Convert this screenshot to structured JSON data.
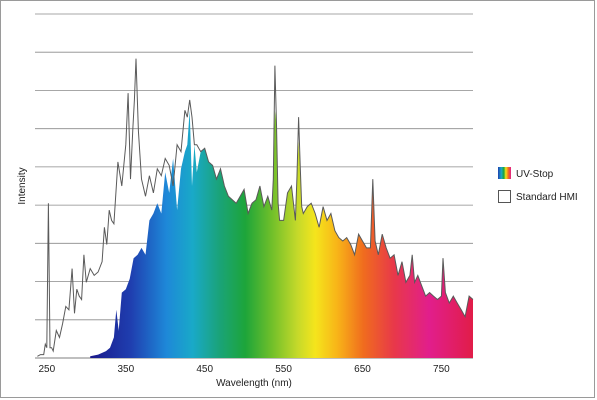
{
  "chart_data": {
    "type": "area",
    "xlabel": "Wavelength (nm)",
    "ylabel": "Intensity",
    "xlim": [
      235,
      790
    ],
    "ylim": [
      0,
      100
    ],
    "x_ticks": [
      250,
      350,
      450,
      550,
      650,
      750
    ],
    "grid": "horizontal, 9 lines",
    "legend_position": "right",
    "series": [
      {
        "name": "UV-Stop",
        "style": "rainbow-filled area",
        "x": [
          305,
          315,
          325,
          330,
          335,
          338,
          341,
          345,
          350,
          355,
          360,
          365,
          370,
          375,
          380,
          385,
          390,
          395,
          400,
          405,
          410,
          415,
          420,
          425,
          428,
          431,
          434,
          437,
          440,
          445,
          450,
          455,
          460,
          465,
          470,
          475,
          480,
          485,
          490,
          495,
          500,
          505,
          510,
          515,
          520,
          525,
          530,
          535,
          537,
          539,
          541,
          543,
          545,
          550,
          555,
          560,
          565,
          567,
          569,
          571,
          573,
          575,
          580,
          585,
          590,
          595,
          600,
          605,
          610,
          615,
          620,
          625,
          630,
          635,
          640,
          645,
          650,
          655,
          660,
          663,
          666,
          670,
          675,
          680,
          685,
          690,
          695,
          700,
          705,
          710,
          713,
          716,
          720,
          725,
          730,
          735,
          740,
          745,
          750,
          752,
          755,
          760,
          765,
          770,
          775,
          780,
          785,
          790
        ],
        "y": [
          0.5,
          1,
          2,
          3,
          6,
          14,
          8,
          19,
          20,
          23,
          29,
          30,
          32,
          30,
          40,
          42,
          45,
          42,
          54,
          48,
          58,
          43,
          55,
          60,
          62,
          72,
          50,
          62,
          54,
          60,
          61,
          57,
          56,
          52,
          55,
          50,
          47,
          46,
          45,
          47,
          49,
          42,
          45,
          46,
          50,
          44,
          47,
          43,
          52,
          72,
          68,
          45,
          40,
          40,
          48,
          50,
          40,
          53,
          63,
          56,
          44,
          42,
          44,
          45,
          42,
          38,
          44,
          40,
          42,
          37,
          35,
          34,
          35,
          33,
          30,
          36,
          34,
          32,
          32,
          52,
          34,
          30,
          36,
          32,
          29,
          30,
          24,
          28,
          22,
          24,
          30,
          22,
          24,
          21,
          18,
          19,
          18,
          17,
          18,
          29,
          19,
          16,
          18,
          16,
          14,
          12,
          18,
          17
        ]
      },
      {
        "name": "Standard HMI",
        "style": "outline only",
        "x": [
          238,
          242,
          246,
          248,
          250,
          252,
          254,
          256,
          258,
          262,
          266,
          270,
          274,
          278,
          282,
          285,
          288,
          291,
          294,
          297,
          300,
          305,
          310,
          315,
          320,
          323,
          326,
          329,
          332,
          335,
          340,
          345,
          350,
          353,
          356,
          359,
          361,
          363,
          366,
          370,
          375,
          380,
          385,
          390,
          395,
          400,
          405,
          410,
          415,
          420,
          425,
          428,
          431,
          434,
          437,
          440,
          445,
          450,
          455,
          460,
          465,
          470,
          475,
          480,
          485,
          490,
          495,
          500,
          505,
          510,
          515,
          520,
          525,
          530,
          535,
          537,
          539,
          541,
          543,
          545,
          550,
          555,
          560,
          565,
          567,
          569,
          571,
          573,
          575,
          580,
          585,
          590,
          595,
          600,
          605,
          610,
          615,
          620,
          625,
          630,
          635,
          640,
          645,
          650,
          655,
          660,
          663,
          666,
          670,
          675,
          680,
          685,
          690,
          695,
          700,
          705,
          710,
          713,
          716,
          720,
          725,
          730,
          735,
          740,
          745,
          750,
          752,
          755,
          760,
          765,
          770,
          775,
          780,
          785,
          790
        ],
        "y": [
          0.5,
          1,
          1,
          4,
          3,
          45,
          3,
          3,
          2,
          8,
          6,
          10,
          15,
          14,
          26,
          13,
          20,
          18,
          17,
          30,
          22,
          26,
          24,
          25,
          28,
          38,
          33,
          43,
          40,
          39,
          57,
          50,
          62,
          77,
          52,
          67,
          75,
          87,
          66,
          52,
          47,
          53,
          48,
          55,
          53,
          58,
          56,
          50,
          62,
          60,
          72,
          70,
          75,
          70,
          62,
          62,
          60,
          61,
          57,
          56,
          52,
          55,
          50,
          47,
          46,
          45,
          47,
          49,
          42,
          45,
          46,
          50,
          44,
          47,
          43,
          52,
          85,
          68,
          45,
          40,
          40,
          48,
          50,
          40,
          53,
          70,
          56,
          44,
          42,
          44,
          45,
          42,
          38,
          44,
          40,
          42,
          37,
          35,
          34,
          35,
          33,
          30,
          36,
          34,
          32,
          32,
          52,
          34,
          30,
          36,
          32,
          29,
          30,
          24,
          28,
          22,
          24,
          30,
          22,
          24,
          21,
          18,
          19,
          18,
          17,
          18,
          29,
          19,
          16,
          18,
          16,
          14,
          12,
          18,
          17
        ]
      }
    ]
  }
}
